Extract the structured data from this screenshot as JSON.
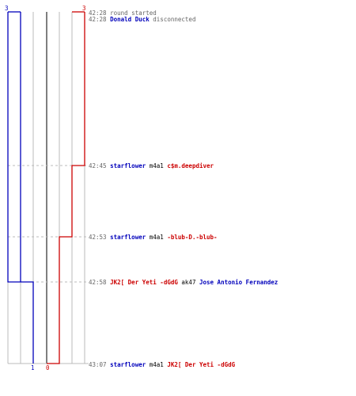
{
  "colors": {
    "blue": "#0000bb",
    "red": "#cc0000",
    "weapon": "#000000",
    "time": "#666666",
    "grid": "#bbbbbb",
    "axis": "#555555"
  },
  "teams": {
    "blue": {
      "start_count": "3",
      "end_count": "1",
      "steps": [
        3,
        1
      ]
    },
    "red": {
      "start_count": "3",
      "end_count": "0",
      "steps": [
        3,
        2,
        1,
        0
      ]
    }
  },
  "events": [
    {
      "time": "42:28",
      "text": "round started"
    },
    {
      "time": "42:28",
      "player": "Donald Duck",
      "player_team": "blue",
      "text": "disconnected"
    },
    {
      "time": "42:45",
      "killer": "starflower",
      "killer_team": "blue",
      "weapon": "m4a1",
      "victim": "c$m.deepdiver",
      "victim_team": "red"
    },
    {
      "time": "42:53",
      "killer": "starflower",
      "killer_team": "blue",
      "weapon": "m4a1",
      "victim": "-blub-D.-blub-",
      "victim_team": "red"
    },
    {
      "time": "42:58",
      "killer": "JK2[ Der Yeti -dGdG",
      "killer_team": "red",
      "weapon": "ak47",
      "victim": "Jose Antonio Fernandez",
      "victim_team": "blue"
    },
    {
      "time": "43:07",
      "killer": "starflower",
      "killer_team": "blue",
      "weapon": "m4a1",
      "victim": "JK2[ Der Yeti -dGdG",
      "victim_team": "red"
    }
  ]
}
